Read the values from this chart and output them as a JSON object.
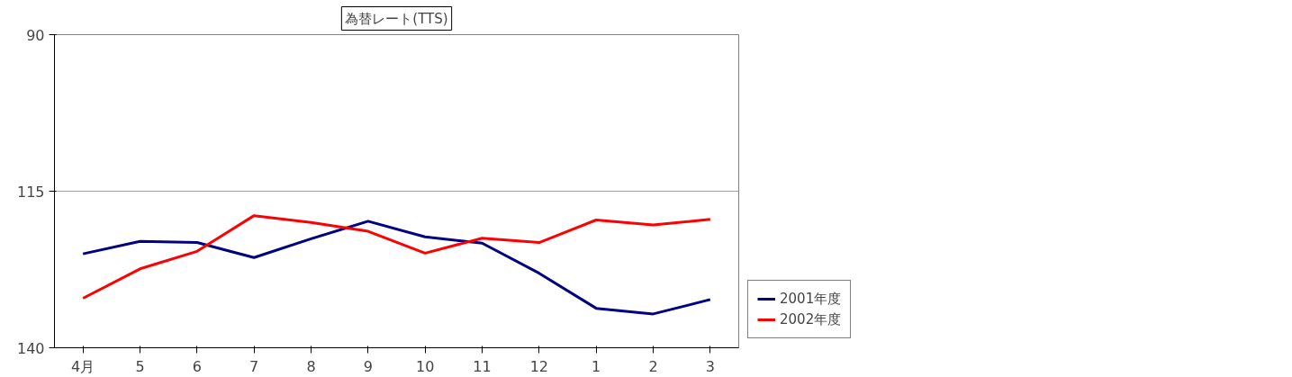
{
  "chart_data": {
    "type": "line",
    "title": "為替レート(TTS)",
    "categories": [
      "4月",
      "5",
      "6",
      "7",
      "8",
      "9",
      "10",
      "11",
      "12",
      "1",
      "2",
      "3"
    ],
    "ylim": [
      140,
      90
    ],
    "yticks": [
      90,
      115,
      140
    ],
    "grid": "y",
    "legend": "right",
    "marker": "none",
    "line_style": "solid",
    "series": [
      {
        "name": "2001年度",
        "color": "#000080",
        "values": [
          125,
          123,
          123.2,
          125.6,
          122.6,
          119.8,
          122.3,
          123.3,
          128.1,
          133.7,
          134.6,
          132.3
        ]
      },
      {
        "name": "2002年度",
        "color": "#ff0000",
        "values": [
          132.1,
          127.4,
          124.6,
          118.9,
          120,
          121.4,
          124.9,
          122.5,
          123.2,
          119.6,
          120.4,
          119.5
        ]
      }
    ]
  }
}
